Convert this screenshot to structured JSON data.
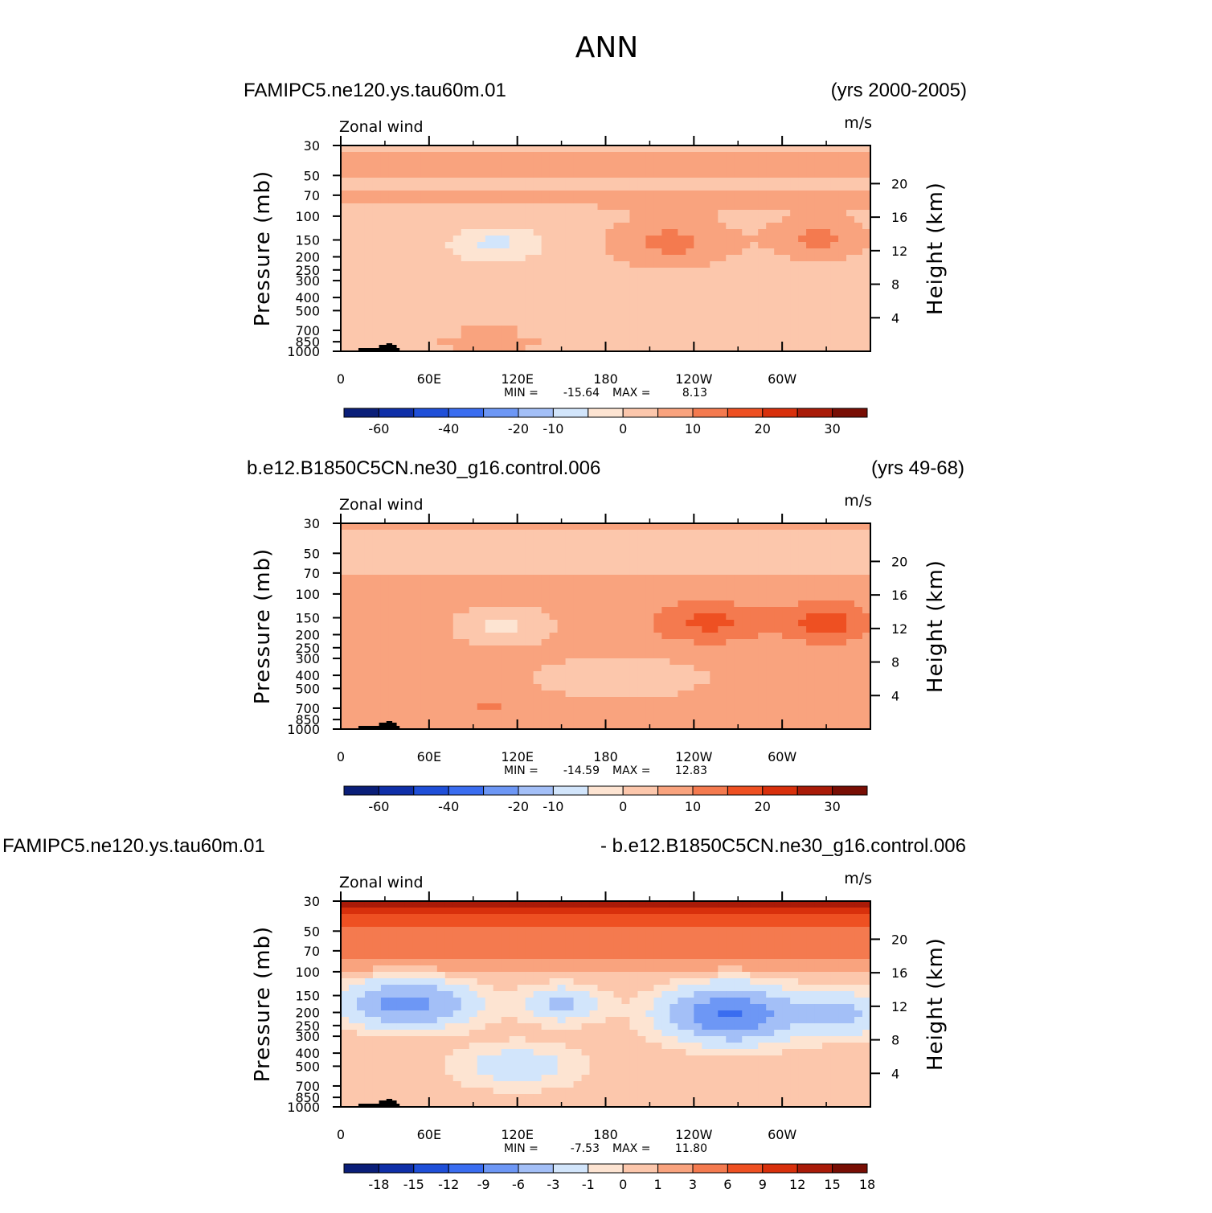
{
  "title": "ANN",
  "colors": {
    "palette": [
      "#0a1e78",
      "#0f2fa8",
      "#1f4fd8",
      "#3a6df0",
      "#6d97f5",
      "#a3bff7",
      "#d2e5fb",
      "#fde4d2",
      "#fcc7ac",
      "#f9a37e",
      "#f47a4f",
      "#ee5022",
      "#d8300c",
      "#a91b08",
      "#780e04"
    ],
    "mountains": "#000000"
  },
  "chart_data": [
    {
      "type": "heatmap",
      "case_label": "FAMIPC5.ne120.ys.tau60m.01",
      "years_label": "(yrs 2000-2005)",
      "var_label": "Zonal wind",
      "units_label": "m/s",
      "ylabel": "Pressure (mb)",
      "ylabel_right": "Height (km)",
      "x_ticks": [
        "0",
        "60E",
        "120E",
        "180",
        "120W",
        "60W"
      ],
      "y_ticks": [
        "30",
        "50",
        "70",
        "100",
        "150",
        "200",
        "250",
        "300",
        "400",
        "500",
        "700",
        "850",
        "1000"
      ],
      "y2_ticks": [
        "20",
        "16",
        "12",
        "8",
        "4"
      ],
      "min_label": "MIN =",
      "min_value": "-15.64",
      "max_label": "MAX =",
      "max_value": "8.13",
      "colorbar_labels": [
        "-60",
        "-40",
        "-20",
        "-10",
        "0",
        "10",
        "20",
        "30"
      ],
      "xlim": [
        0,
        360
      ],
      "ylim": [
        1000,
        30
      ]
    },
    {
      "type": "heatmap",
      "case_label": "b.e12.B1850C5CN.ne30_g16.control.006",
      "years_label": "(yrs 49-68)",
      "var_label": "Zonal wind",
      "units_label": "m/s",
      "ylabel": "Pressure (mb)",
      "ylabel_right": "Height (km)",
      "x_ticks": [
        "0",
        "60E",
        "120E",
        "180",
        "120W",
        "60W"
      ],
      "y_ticks": [
        "30",
        "50",
        "70",
        "100",
        "150",
        "200",
        "250",
        "300",
        "400",
        "500",
        "700",
        "850",
        "1000"
      ],
      "y2_ticks": [
        "20",
        "16",
        "12",
        "8",
        "4"
      ],
      "min_label": "MIN =",
      "min_value": "-14.59",
      "max_label": "MAX =",
      "max_value": "12.83",
      "colorbar_labels": [
        "-60",
        "-40",
        "-20",
        "-10",
        "0",
        "10",
        "20",
        "30"
      ],
      "xlim": [
        0,
        360
      ],
      "ylim": [
        1000,
        30
      ]
    },
    {
      "type": "heatmap",
      "case_label": "FAMIPC5.ne120.ys.tau60m.01",
      "years_label": "- b.e12.B1850C5CN.ne30_g16.control.006",
      "var_label": "Zonal wind",
      "units_label": "m/s",
      "ylabel": "Pressure (mb)",
      "ylabel_right": "Height (km)",
      "x_ticks": [
        "0",
        "60E",
        "120E",
        "180",
        "120W",
        "60W"
      ],
      "y_ticks": [
        "30",
        "50",
        "70",
        "100",
        "150",
        "200",
        "250",
        "300",
        "400",
        "500",
        "700",
        "850",
        "1000"
      ],
      "y2_ticks": [
        "20",
        "16",
        "12",
        "8",
        "4"
      ],
      "min_label": "MIN =",
      "min_value": "-7.53",
      "max_label": "MAX =",
      "max_value": "11.80",
      "colorbar_labels": [
        "-18",
        "-15",
        "-12",
        "-9",
        "-6",
        "-3",
        "-1",
        "0",
        "1",
        "3",
        "6",
        "9",
        "12",
        "15",
        "18"
      ],
      "xlim": [
        0,
        360
      ],
      "ylim": [
        1000,
        30
      ]
    }
  ]
}
